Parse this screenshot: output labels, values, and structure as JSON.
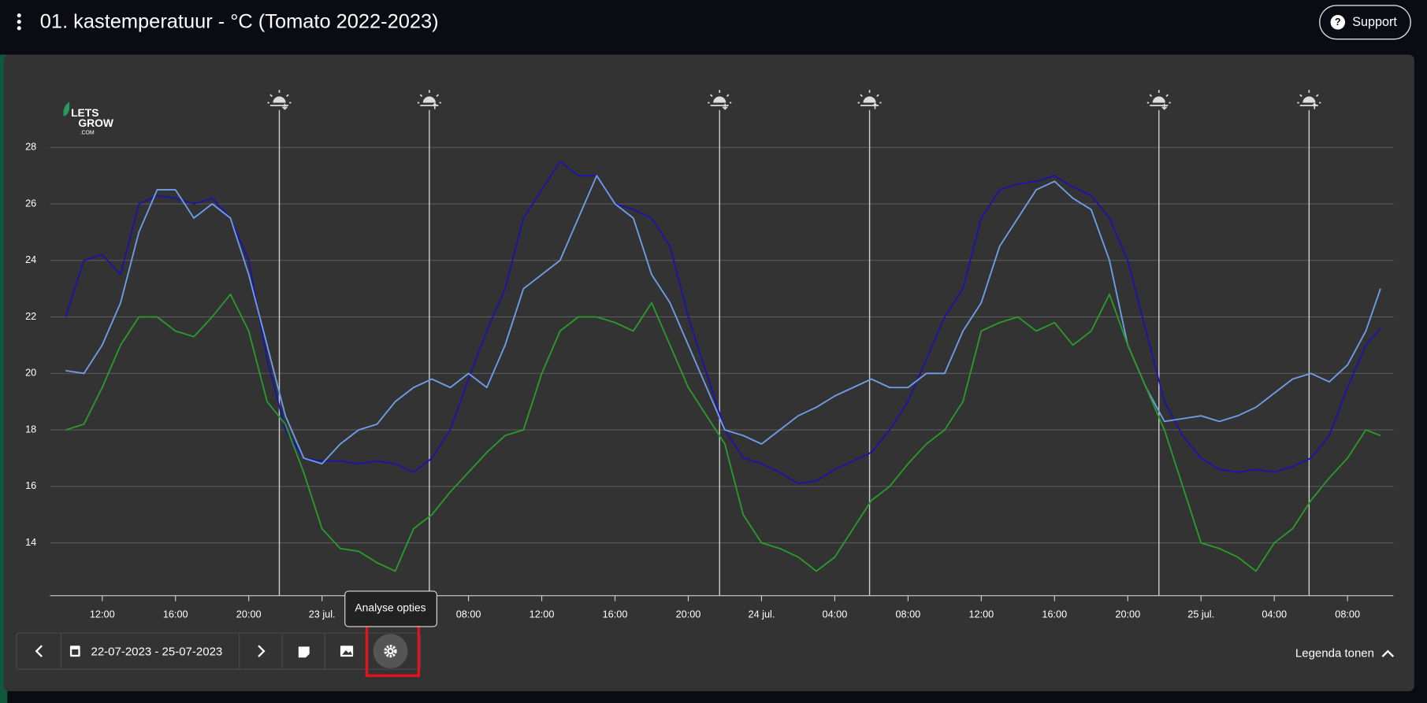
{
  "header": {
    "title": "01. kastemperatuur - °C (Tomato 2022-2023)",
    "support": "Support"
  },
  "logo": {
    "line1": "LETS",
    "line2": "GROW",
    "line3": ".COM"
  },
  "chart_data": {
    "type": "line",
    "x": [
      10,
      11,
      12,
      13,
      14,
      15,
      16,
      17,
      18,
      19,
      20,
      21,
      22,
      23,
      24,
      25,
      26,
      27,
      28,
      29,
      30,
      31,
      32,
      33,
      34,
      35,
      36,
      37,
      38,
      39,
      40,
      41,
      42,
      43,
      44,
      45,
      46,
      47,
      48,
      49,
      50,
      51,
      52,
      53,
      54,
      55,
      56,
      57,
      58,
      59,
      60,
      61,
      62,
      63,
      64,
      65,
      66,
      67,
      68,
      69,
      70,
      71,
      72,
      73,
      74,
      75,
      76,
      77,
      78,
      79,
      80,
      81,
      81.8
    ],
    "xlim": [
      9.15,
      82.5
    ],
    "xticks": [
      {
        "value": 12,
        "label": "12:00"
      },
      {
        "value": 16,
        "label": "16:00"
      },
      {
        "value": 20,
        "label": "20:00"
      },
      {
        "value": 24,
        "label": "23 jul."
      },
      {
        "value": 28,
        "label": "04:00"
      },
      {
        "value": 32,
        "label": "08:00"
      },
      {
        "value": 36,
        "label": "12:00"
      },
      {
        "value": 40,
        "label": "16:00"
      },
      {
        "value": 44,
        "label": "20:00"
      },
      {
        "value": 48,
        "label": "24 jul."
      },
      {
        "value": 52,
        "label": "04:00"
      },
      {
        "value": 56,
        "label": "08:00"
      },
      {
        "value": 60,
        "label": "12:00"
      },
      {
        "value": 64,
        "label": "16:00"
      },
      {
        "value": 68,
        "label": "20:00"
      },
      {
        "value": 72,
        "label": "25 jul."
      },
      {
        "value": 76,
        "label": "04:00"
      },
      {
        "value": 80,
        "label": "08:00"
      }
    ],
    "ylim": [
      12.13,
      30
    ],
    "yticks": [
      14,
      16,
      18,
      20,
      22,
      24,
      26,
      28
    ],
    "grid": true,
    "markers": [
      21.67,
      29.86,
      45.71,
      53.9,
      69.7,
      77.9
    ],
    "series": [
      {
        "color": "#1c14a8",
        "values": [
          22,
          24,
          24.2,
          23.5,
          26,
          26.3,
          26.2,
          26,
          26.2,
          25.5,
          24,
          20.5,
          18,
          17,
          16.9,
          16.9,
          16.8,
          16.9,
          16.8,
          16.5,
          17,
          18,
          19.8,
          21.5,
          23,
          25.5,
          26.5,
          27.5,
          27,
          27,
          26,
          25.8,
          25.5,
          24.5,
          22,
          20,
          18,
          17,
          16.8,
          16.5,
          16.1,
          16.2,
          16.6,
          16.9,
          17.2,
          18,
          19,
          20.5,
          22,
          23,
          25.5,
          26.5,
          26.7,
          26.8,
          27,
          26.6,
          26.3,
          25.5,
          24,
          21.5,
          19,
          17.8,
          17,
          16.6,
          16.5,
          16.6,
          16.5,
          16.7,
          17,
          17.8,
          19.5,
          21,
          21.6
        ]
      },
      {
        "color": "#6f9ee8",
        "values": [
          20.1,
          20,
          21,
          22.5,
          25,
          26.5,
          26.5,
          25.5,
          26,
          25.5,
          23.5,
          21,
          18.5,
          17,
          16.8,
          17.5,
          18,
          18.2,
          19,
          19.5,
          19.8,
          19.5,
          20,
          19.5,
          21,
          23,
          23.5,
          24,
          25.5,
          27,
          26,
          25.5,
          23.5,
          22.5,
          21,
          19.5,
          18,
          17.8,
          17.5,
          18,
          18.5,
          18.8,
          19.2,
          19.5,
          19.8,
          19.5,
          19.5,
          20,
          20,
          21.5,
          22.5,
          24.5,
          25.5,
          26.5,
          26.8,
          26.2,
          25.8,
          24,
          21,
          19.5,
          18.3,
          18.4,
          18.5,
          18.3,
          18.5,
          18.8,
          19.3,
          19.8,
          20,
          19.7,
          20.3,
          21.5,
          23
        ]
      },
      {
        "color": "#2a9a2a",
        "values": [
          18,
          18.2,
          19.5,
          21,
          22,
          22,
          21.5,
          21.3,
          22,
          22.8,
          21.5,
          19,
          18.2,
          16.5,
          14.5,
          13.8,
          13.7,
          13.3,
          13,
          14.5,
          15,
          15.8,
          16.5,
          17.2,
          17.8,
          18,
          20,
          21.5,
          22,
          22,
          21.8,
          21.5,
          22.5,
          21,
          19.5,
          18.5,
          17.5,
          15,
          14,
          13.8,
          13.5,
          13,
          13.5,
          14.5,
          15.5,
          16,
          16.8,
          17.5,
          18,
          19,
          21.5,
          21.8,
          22,
          21.5,
          21.8,
          21,
          21.5,
          22.8,
          21,
          19.5,
          18,
          16,
          14,
          13.8,
          13.5,
          13,
          14,
          14.5,
          15.5,
          16.3,
          17,
          18,
          17.8
        ]
      }
    ]
  },
  "toolbar": {
    "date_range": "22-07-2023 - 25-07-2023",
    "tooltip": "Analyse opties"
  },
  "legend_toggle": "Legenda tonen"
}
